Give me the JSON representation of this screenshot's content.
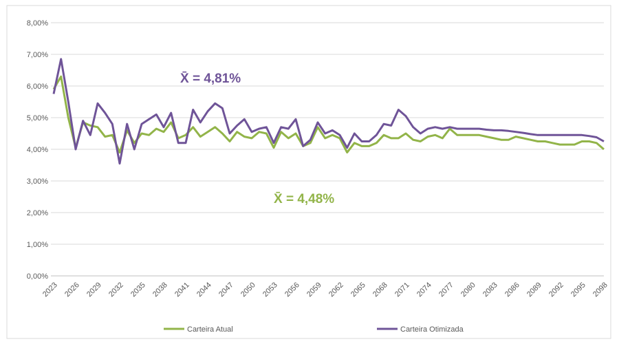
{
  "chart_data": {
    "type": "line",
    "categories": [
      "2023",
      null,
      null,
      "2026",
      null,
      null,
      "2029",
      null,
      null,
      "2032",
      null,
      null,
      "2035",
      null,
      null,
      "2038",
      null,
      null,
      "2041",
      null,
      null,
      "2044",
      null,
      null,
      "2047",
      null,
      null,
      "2050",
      null,
      null,
      "2053",
      null,
      null,
      "2056",
      null,
      null,
      "2059",
      null,
      null,
      "2062",
      null,
      null,
      "2065",
      null,
      null,
      "2068",
      null,
      null,
      "2071",
      null,
      null,
      "2074",
      null,
      null,
      "2077",
      null,
      null,
      "2080",
      null,
      null,
      "2083",
      null,
      null,
      "2086",
      null,
      null,
      "2089",
      null,
      null,
      "2092",
      null,
      null,
      "2095",
      null,
      null,
      "2098"
    ],
    "series": [
      {
        "name": "Carteira Atual",
        "color": "#92b449",
        "values": [
          5.9,
          6.3,
          5.0,
          4.05,
          4.85,
          4.75,
          4.7,
          4.4,
          4.45,
          3.9,
          4.6,
          4.2,
          4.5,
          4.45,
          4.65,
          4.55,
          4.85,
          4.35,
          4.45,
          4.7,
          4.4,
          4.55,
          4.7,
          4.5,
          4.25,
          4.55,
          4.4,
          4.35,
          4.55,
          4.5,
          4.05,
          4.55,
          4.35,
          4.5,
          4.1,
          4.2,
          4.7,
          4.35,
          4.45,
          4.35,
          3.9,
          4.2,
          4.1,
          4.1,
          4.2,
          4.45,
          4.35,
          4.35,
          4.5,
          4.3,
          4.25,
          4.4,
          4.45,
          4.35,
          4.65,
          4.45,
          4.45,
          4.45,
          4.45,
          4.4,
          4.35,
          4.3,
          4.3,
          4.4,
          4.35,
          4.3,
          4.25,
          4.25,
          4.2,
          4.15,
          4.15,
          4.15,
          4.25,
          4.25,
          4.2,
          4.0
        ]
      },
      {
        "name": "Carteira Otimizada",
        "color": "#6f5498",
        "values": [
          5.75,
          6.85,
          5.5,
          4.0,
          4.9,
          4.45,
          5.45,
          5.15,
          4.8,
          3.55,
          4.8,
          4.0,
          4.8,
          4.95,
          5.1,
          4.7,
          5.15,
          4.2,
          4.2,
          5.25,
          4.85,
          5.2,
          5.45,
          5.3,
          4.5,
          4.75,
          4.95,
          4.55,
          4.65,
          4.7,
          4.2,
          4.7,
          4.65,
          4.95,
          4.1,
          4.3,
          4.85,
          4.5,
          4.6,
          4.45,
          4.05,
          4.5,
          4.25,
          4.25,
          4.45,
          4.8,
          4.75,
          5.25,
          5.05,
          4.7,
          4.5,
          4.65,
          4.7,
          4.65,
          4.7,
          4.65,
          4.65,
          4.65,
          4.65,
          4.62,
          4.6,
          4.6,
          4.58,
          4.55,
          4.52,
          4.48,
          4.45,
          4.45,
          4.45,
          4.45,
          4.45,
          4.45,
          4.45,
          4.42,
          4.38,
          4.25
        ]
      }
    ],
    "annotations": [
      "X̄ = 4,48%",
      "X̄ = 4,81%"
    ],
    "ylim": [
      0,
      8
    ],
    "yticks": [
      {
        "value": 0,
        "label": "0,00%"
      },
      {
        "value": 1,
        "label": "1,00%"
      },
      {
        "value": 2,
        "label": "2,00%"
      },
      {
        "value": 3,
        "label": "3,00%"
      },
      {
        "value": 4,
        "label": "4,00%"
      },
      {
        "value": 5,
        "label": "5,00%"
      },
      {
        "value": 6,
        "label": "6,00%"
      },
      {
        "value": 7,
        "label": "7,00%"
      },
      {
        "value": 8,
        "label": "8,00%"
      }
    ],
    "grid": true,
    "legend": "bottom"
  }
}
